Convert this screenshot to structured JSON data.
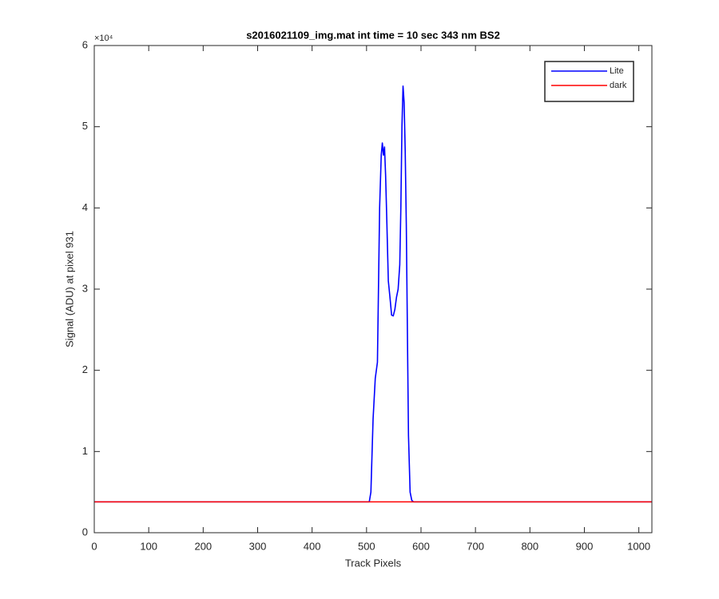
{
  "chart_data": {
    "type": "line",
    "title": "s2016021109_img.mat int time = 10 sec  343 nm BS2",
    "xlabel": "Track Pixels",
    "ylabel": "Signal (ADU) at pixel 931",
    "y_exponent_label": "×10⁴",
    "xlim": [
      0,
      1024
    ],
    "xticks": [
      0,
      100,
      200,
      300,
      400,
      500,
      600,
      700,
      800,
      900,
      1000
    ],
    "ylim": [
      0,
      60000
    ],
    "yticks": [
      {
        "value": 0,
        "label": "0"
      },
      {
        "value": 10000,
        "label": "1"
      },
      {
        "value": 20000,
        "label": "2"
      },
      {
        "value": 30000,
        "label": "3"
      },
      {
        "value": 40000,
        "label": "4"
      },
      {
        "value": 50000,
        "label": "5"
      },
      {
        "value": 60000,
        "label": "6"
      }
    ],
    "grid": false,
    "legend": "upper right",
    "series": [
      {
        "name": "Lite",
        "color": "#0000ff",
        "x": [
          0,
          505,
          508,
          512,
          516,
          520,
          524,
          527,
          529,
          531,
          533,
          535,
          537,
          540,
          543,
          546,
          549,
          552,
          555,
          558,
          561,
          563,
          565,
          567,
          569,
          571,
          573,
          575,
          577,
          580,
          583,
          586,
          590,
          1024
        ],
        "values": [
          3800,
          3800,
          5000,
          14000,
          19000,
          21000,
          40000,
          46500,
          48000,
          46500,
          47500,
          44000,
          39000,
          31000,
          29000,
          26800,
          26700,
          27500,
          29000,
          30000,
          33000,
          40000,
          50000,
          55000,
          53000,
          47000,
          38000,
          25000,
          12000,
          5000,
          4000,
          3800,
          3800,
          3800
        ]
      },
      {
        "name": "dark",
        "color": "#ff0000",
        "x": [
          0,
          1024
        ],
        "values": [
          3800,
          3800
        ]
      }
    ]
  }
}
